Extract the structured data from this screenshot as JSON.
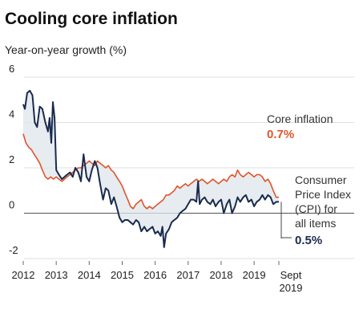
{
  "chart_data": {
    "type": "line",
    "title": "Cooling core inflation",
    "ylabel": "Year-on-year growth (%)",
    "xlabel": "",
    "ylim": [
      -2,
      6
    ],
    "xlim": [
      2012,
      2019.75
    ],
    "y_ticks": [
      "6",
      "4",
      "2",
      "0",
      "-2"
    ],
    "y_tick_values": [
      6,
      4,
      2,
      0,
      -2
    ],
    "x_ticks": [
      {
        "label": "2012",
        "x": 2012
      },
      {
        "label": "2013",
        "x": 2013
      },
      {
        "label": "2014",
        "x": 2014
      },
      {
        "label": "2015",
        "x": 2015
      },
      {
        "label": "2016",
        "x": 2016
      },
      {
        "label": "2017",
        "x": 2017
      },
      {
        "label": "2018",
        "x": 2018
      },
      {
        "label": "2019",
        "x": 2019
      }
    ],
    "x_end_label": [
      "Sept",
      "2019"
    ],
    "grid": true,
    "shaded_gap_between_series": true,
    "series": [
      {
        "name": "Core inflation",
        "color": "#e0542c",
        "end_value_label": "0.7%",
        "points": [
          [
            2012.0,
            3.5
          ],
          [
            2012.08,
            3.1
          ],
          [
            2012.17,
            2.9
          ],
          [
            2012.25,
            2.8
          ],
          [
            2012.33,
            2.6
          ],
          [
            2012.42,
            2.4
          ],
          [
            2012.5,
            2.2
          ],
          [
            2012.58,
            1.9
          ],
          [
            2012.67,
            1.6
          ],
          [
            2012.75,
            1.5
          ],
          [
            2012.83,
            1.6
          ],
          [
            2012.92,
            1.5
          ],
          [
            2013.0,
            1.6
          ],
          [
            2013.08,
            1.5
          ],
          [
            2013.17,
            1.4
          ],
          [
            2013.25,
            1.5
          ],
          [
            2013.33,
            1.6
          ],
          [
            2013.42,
            1.7
          ],
          [
            2013.5,
            1.8
          ],
          [
            2013.58,
            1.9
          ],
          [
            2013.67,
            2.0
          ],
          [
            2013.75,
            2.0
          ],
          [
            2013.83,
            2.1
          ],
          [
            2013.92,
            2.2
          ],
          [
            2014.0,
            2.3
          ],
          [
            2014.08,
            2.2
          ],
          [
            2014.17,
            2.1
          ],
          [
            2014.25,
            2.3
          ],
          [
            2014.33,
            2.2
          ],
          [
            2014.42,
            2.1
          ],
          [
            2014.5,
            2.0
          ],
          [
            2014.58,
            2.1
          ],
          [
            2014.67,
            1.9
          ],
          [
            2014.75,
            1.8
          ],
          [
            2014.83,
            1.6
          ],
          [
            2014.92,
            1.4
          ],
          [
            2015.0,
            1.2
          ],
          [
            2015.08,
            0.9
          ],
          [
            2015.17,
            0.6
          ],
          [
            2015.25,
            0.3
          ],
          [
            2015.33,
            0.2
          ],
          [
            2015.42,
            0.4
          ],
          [
            2015.5,
            0.5
          ],
          [
            2015.58,
            0.6
          ],
          [
            2015.67,
            0.3
          ],
          [
            2015.75,
            0.2
          ],
          [
            2015.83,
            0.3
          ],
          [
            2015.92,
            0.2
          ],
          [
            2016.0,
            0.3
          ],
          [
            2016.08,
            0.4
          ],
          [
            2016.17,
            0.5
          ],
          [
            2016.25,
            0.6
          ],
          [
            2016.33,
            0.8
          ],
          [
            2016.42,
            0.8
          ],
          [
            2016.5,
            0.9
          ],
          [
            2016.58,
            1.0
          ],
          [
            2016.67,
            1.2
          ],
          [
            2016.75,
            1.1
          ],
          [
            2016.83,
            1.2
          ],
          [
            2016.92,
            1.3
          ],
          [
            2017.0,
            1.2
          ],
          [
            2017.08,
            1.3
          ],
          [
            2017.17,
            1.4
          ],
          [
            2017.25,
            1.5
          ],
          [
            2017.33,
            1.4
          ],
          [
            2017.42,
            1.5
          ],
          [
            2017.5,
            1.4
          ],
          [
            2017.58,
            1.3
          ],
          [
            2017.67,
            1.4
          ],
          [
            2017.75,
            1.5
          ],
          [
            2017.83,
            1.4
          ],
          [
            2017.92,
            1.3
          ],
          [
            2018.0,
            1.4
          ],
          [
            2018.08,
            1.5
          ],
          [
            2018.17,
            1.4
          ],
          [
            2018.25,
            1.6
          ],
          [
            2018.33,
            1.7
          ],
          [
            2018.42,
            1.6
          ],
          [
            2018.5,
            1.9
          ],
          [
            2018.58,
            1.7
          ],
          [
            2018.67,
            1.6
          ],
          [
            2018.75,
            1.7
          ],
          [
            2018.83,
            1.8
          ],
          [
            2018.92,
            1.7
          ],
          [
            2019.0,
            1.6
          ],
          [
            2019.08,
            1.7
          ],
          [
            2019.17,
            1.7
          ],
          [
            2019.25,
            1.6
          ],
          [
            2019.33,
            1.4
          ],
          [
            2019.42,
            1.5
          ],
          [
            2019.5,
            1.3
          ],
          [
            2019.58,
            1.0
          ],
          [
            2019.67,
            0.7
          ],
          [
            2019.75,
            0.7
          ]
        ]
      },
      {
        "name": "Consumer Price Index (CPI) for all items",
        "label_lines": [
          "Consumer",
          "Price Index",
          "(CPI) for",
          "all items"
        ],
        "color": "#1a2a4f",
        "end_value_label": "0.5%",
        "points": [
          [
            2012.0,
            4.8
          ],
          [
            2012.05,
            4.6
          ],
          [
            2012.12,
            5.3
          ],
          [
            2012.2,
            5.4
          ],
          [
            2012.28,
            5.2
          ],
          [
            2012.35,
            4.0
          ],
          [
            2012.42,
            3.8
          ],
          [
            2012.5,
            4.7
          ],
          [
            2012.58,
            4.6
          ],
          [
            2012.67,
            4.0
          ],
          [
            2012.75,
            3.6
          ],
          [
            2012.8,
            4.2
          ],
          [
            2012.85,
            3.1
          ],
          [
            2012.9,
            4.9
          ],
          [
            2012.95,
            4.2
          ],
          [
            2013.0,
            1.9
          ],
          [
            2013.08,
            1.7
          ],
          [
            2013.17,
            1.5
          ],
          [
            2013.25,
            1.6
          ],
          [
            2013.33,
            1.7
          ],
          [
            2013.42,
            1.8
          ],
          [
            2013.5,
            1.6
          ],
          [
            2013.58,
            2.0
          ],
          [
            2013.67,
            1.8
          ],
          [
            2013.75,
            1.4
          ],
          [
            2013.83,
            2.6
          ],
          [
            2013.92,
            1.6
          ],
          [
            2014.0,
            1.4
          ],
          [
            2014.08,
            1.9
          ],
          [
            2014.17,
            2.3
          ],
          [
            2014.25,
            2.0
          ],
          [
            2014.33,
            1.3
          ],
          [
            2014.42,
            0.6
          ],
          [
            2014.5,
            1.1
          ],
          [
            2014.58,
            1.0
          ],
          [
            2014.67,
            0.4
          ],
          [
            2014.75,
            0.7
          ],
          [
            2014.83,
            0.3
          ],
          [
            2014.92,
            -0.2
          ],
          [
            2015.0,
            -0.4
          ],
          [
            2015.08,
            -0.3
          ],
          [
            2015.17,
            -0.3
          ],
          [
            2015.25,
            -0.4
          ],
          [
            2015.33,
            -0.5
          ],
          [
            2015.42,
            -0.3
          ],
          [
            2015.5,
            -0.4
          ],
          [
            2015.58,
            -0.8
          ],
          [
            2015.67,
            -0.6
          ],
          [
            2015.75,
            -0.8
          ],
          [
            2015.83,
            -0.7
          ],
          [
            2015.92,
            -0.6
          ],
          [
            2016.0,
            -0.9
          ],
          [
            2016.08,
            -0.8
          ],
          [
            2016.17,
            -1.0
          ],
          [
            2016.22,
            -0.6
          ],
          [
            2016.27,
            -1.5
          ],
          [
            2016.33,
            -0.9
          ],
          [
            2016.42,
            -0.7
          ],
          [
            2016.5,
            -0.4
          ],
          [
            2016.58,
            -0.3
          ],
          [
            2016.67,
            -0.2
          ],
          [
            2016.75,
            0.0
          ],
          [
            2016.83,
            0.1
          ],
          [
            2016.92,
            0.2
          ],
          [
            2017.0,
            0.4
          ],
          [
            2017.08,
            0.6
          ],
          [
            2017.17,
            0.6
          ],
          [
            2017.25,
            0.5
          ],
          [
            2017.3,
            1.4
          ],
          [
            2017.35,
            0.4
          ],
          [
            2017.42,
            0.6
          ],
          [
            2017.5,
            0.7
          ],
          [
            2017.58,
            0.5
          ],
          [
            2017.67,
            0.4
          ],
          [
            2017.75,
            0.6
          ],
          [
            2017.83,
            0.3
          ],
          [
            2017.92,
            0.5
          ],
          [
            2018.0,
            0.6
          ],
          [
            2018.08,
            0.0
          ],
          [
            2018.17,
            0.4
          ],
          [
            2018.25,
            0.6
          ],
          [
            2018.33,
            0.0
          ],
          [
            2018.42,
            0.3
          ],
          [
            2018.5,
            0.7
          ],
          [
            2018.58,
            0.5
          ],
          [
            2018.67,
            0.7
          ],
          [
            2018.75,
            0.8
          ],
          [
            2018.83,
            0.5
          ],
          [
            2018.92,
            0.6
          ],
          [
            2019.0,
            0.3
          ],
          [
            2019.08,
            0.5
          ],
          [
            2019.17,
            0.6
          ],
          [
            2019.25,
            0.8
          ],
          [
            2019.33,
            0.6
          ],
          [
            2019.42,
            0.8
          ],
          [
            2019.5,
            0.7
          ],
          [
            2019.58,
            0.4
          ],
          [
            2019.67,
            0.5
          ],
          [
            2019.75,
            0.5
          ]
        ]
      }
    ]
  }
}
